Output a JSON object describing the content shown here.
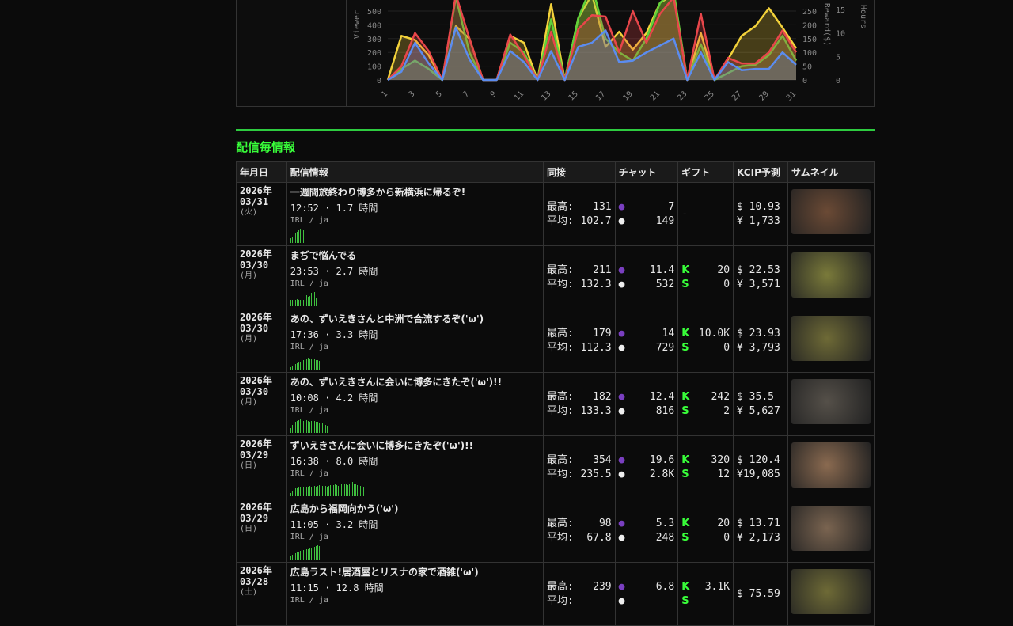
{
  "chart_data": {
    "type": "area",
    "x": [
      1,
      2,
      3,
      4,
      5,
      6,
      7,
      8,
      9,
      10,
      11,
      12,
      13,
      14,
      15,
      16,
      17,
      18,
      19,
      20,
      21,
      22,
      23,
      24,
      25,
      26,
      27,
      28,
      29,
      30,
      31
    ],
    "xticks": [
      "1",
      "3",
      "5",
      "7",
      "9",
      "11",
      "13",
      "15",
      "17",
      "19",
      "21",
      "23",
      "25",
      "27",
      "29",
      "31"
    ],
    "ylabel": "Viewer",
    "y2label": "Reward($)",
    "y3label": "Hours",
    "yticks": [
      0,
      100,
      200,
      300,
      400,
      500
    ],
    "y2ticks": [
      0,
      50,
      100,
      150,
      200,
      250
    ],
    "y3ticks": [
      0,
      5,
      10,
      15
    ],
    "ylim": [
      0,
      580
    ],
    "series": [
      {
        "color": "#f2d13a",
        "values": [
          0,
          320,
          290,
          180,
          0,
          390,
          300,
          0,
          0,
          320,
          270,
          0,
          550,
          0,
          450,
          620,
          240,
          350,
          220,
          340,
          560,
          620,
          0,
          340,
          0,
          150,
          320,
          390,
          520,
          380,
          230
        ]
      },
      {
        "color": "#5fd23a",
        "values": [
          0,
          80,
          140,
          80,
          0,
          600,
          200,
          0,
          0,
          270,
          200,
          0,
          440,
          0,
          450,
          700,
          300,
          200,
          140,
          300,
          560,
          650,
          0,
          260,
          0,
          50,
          100,
          110,
          180,
          320,
          140
        ]
      },
      {
        "color": "#e8464a",
        "values": [
          0,
          100,
          340,
          210,
          0,
          620,
          300,
          0,
          0,
          330,
          180,
          0,
          350,
          0,
          370,
          470,
          460,
          200,
          500,
          270,
          480,
          600,
          0,
          480,
          0,
          160,
          120,
          120,
          200,
          360,
          200
        ]
      },
      {
        "color": "#5b8cf0",
        "values": [
          0,
          60,
          270,
          120,
          0,
          380,
          150,
          0,
          0,
          210,
          130,
          0,
          210,
          0,
          240,
          270,
          360,
          130,
          140,
          200,
          250,
          300,
          0,
          200,
          0,
          130,
          70,
          80,
          80,
          200,
          110
        ]
      }
    ]
  },
  "section_title": "配信毎情報",
  "headers": [
    "年月日",
    "配信情報",
    "同接",
    "チャット",
    "ギフト",
    "KCIP予測",
    "サムネイル"
  ],
  "labels": {
    "max": "最高:",
    "avg": "平均:"
  },
  "rows": [
    {
      "year": "2026年",
      "md": "03/31",
      "dow": "(火)",
      "title": "一週間旅終わり博多から新横浜に帰るぞ!",
      "time": "12:52 · 1.7 時間",
      "cat": "IRL / ja",
      "max": "131",
      "avg": "102.7",
      "chat1": "7",
      "chat2": "149",
      "gift_k": "",
      "gift_s": "",
      "gift_none": "-",
      "usd": "$ 10.93",
      "jpy": "¥ 1,733",
      "spark": [
        6,
        8,
        10,
        12,
        14,
        16,
        18,
        18,
        17,
        17
      ],
      "thumb": "#6b4a35"
    },
    {
      "year": "2026年",
      "md": "03/30",
      "dow": "(月)",
      "title": "まぢで悩んでる",
      "time": "23:53 · 2.7 時間",
      "cat": "IRL / ja",
      "max": "211",
      "avg": "132.3",
      "chat1": "11.4",
      "chat2": "532",
      "gift_k": "20",
      "gift_s": "0",
      "gift_none": "",
      "usd": "$ 22.53",
      "jpy": "¥ 3,571",
      "spark": [
        8,
        8,
        9,
        8,
        9,
        8,
        8,
        9,
        8,
        9,
        14,
        12,
        13,
        17,
        15,
        18,
        11
      ],
      "thumb": "#7a7a3a"
    },
    {
      "year": "2026年",
      "md": "03/30",
      "dow": "(月)",
      "title": "あの、ずいえきさんと中洲で合流するぞ('ω')",
      "time": "17:36 · 3.3 時間",
      "cat": "IRL / ja",
      "max": "179",
      "avg": "112.3",
      "chat1": "14",
      "chat2": "729",
      "gift_k": "10.0K",
      "gift_s": "0",
      "gift_none": "",
      "usd": "$ 23.93",
      "jpy": "¥ 3,793",
      "spark": [
        3,
        4,
        5,
        7,
        8,
        9,
        10,
        11,
        12,
        13,
        14,
        15,
        14,
        13,
        14,
        13,
        12,
        12,
        11,
        10
      ],
      "thumb": "#6e6a36"
    },
    {
      "year": "2026年",
      "md": "03/30",
      "dow": "(月)",
      "title": "あの、ずいえきさんに会いに博多にきたぞ('ω')!!",
      "time": "10:08 · 4.2 時間",
      "cat": "IRL / ja",
      "max": "182",
      "avg": "133.3",
      "chat1": "12.4",
      "chat2": "816",
      "gift_k": "242",
      "gift_s": "2",
      "gift_none": "",
      "usd": "$ 35.5",
      "jpy": "¥ 5,627",
      "spark": [
        6,
        10,
        12,
        14,
        15,
        16,
        17,
        16,
        15,
        17,
        16,
        15,
        14,
        15,
        16,
        15,
        14,
        14,
        13,
        12,
        12,
        11,
        10,
        9
      ],
      "thumb": "#555049"
    },
    {
      "year": "2026年",
      "md": "03/29",
      "dow": "(日)",
      "title": "ずいえきさんに会いに博多にきたぞ('ω')!!",
      "time": "16:38 · 8.0 時間",
      "cat": "IRL / ja",
      "max": "354",
      "avg": "235.5",
      "chat1": "19.6",
      "chat2": "2.8K",
      "gift_k": "320",
      "gift_s": "12",
      "gift_none": "",
      "usd": "$ 120.4",
      "jpy": "¥19,085",
      "spark": [
        4,
        7,
        9,
        10,
        11,
        12,
        12,
        13,
        12,
        13,
        12,
        12,
        13,
        12,
        13,
        13,
        12,
        13,
        14,
        13,
        13,
        14,
        13,
        12,
        13,
        14,
        13,
        14,
        15,
        14,
        13,
        14,
        15,
        14,
        15,
        16,
        14,
        15,
        17,
        18,
        16,
        15,
        14,
        13,
        13,
        12,
        12
      ],
      "thumb": "#8a6a50"
    },
    {
      "year": "2026年",
      "md": "03/29",
      "dow": "(日)",
      "title": "広島から福岡向かう('ω')",
      "time": "11:05 · 3.2 時間",
      "cat": "IRL / ja",
      "max": "98",
      "avg": "67.8",
      "chat1": "5.3",
      "chat2": "248",
      "gift_k": "20",
      "gift_s": "0",
      "gift_none": "",
      "usd": "$ 13.71",
      "jpy": "¥ 2,173",
      "spark": [
        5,
        6,
        7,
        8,
        9,
        10,
        11,
        11,
        12,
        12,
        13,
        13,
        14,
        14,
        15,
        16,
        17,
        18,
        17
      ],
      "thumb": "#7a6450"
    },
    {
      "year": "2026年",
      "md": "03/28",
      "dow": "(土)",
      "title": "広島ラスト!居酒屋とリスナの家で酒雑('ω')",
      "time": "11:15 · 12.8 時間",
      "cat": "IRL / ja",
      "max": "239",
      "avg": "",
      "chat1": "6.8",
      "chat2": "",
      "gift_k": "3.1K",
      "gift_s": "",
      "gift_none": "",
      "usd": "$ 75.59",
      "jpy": "",
      "spark": [],
      "thumb": "#6e6a36"
    }
  ]
}
